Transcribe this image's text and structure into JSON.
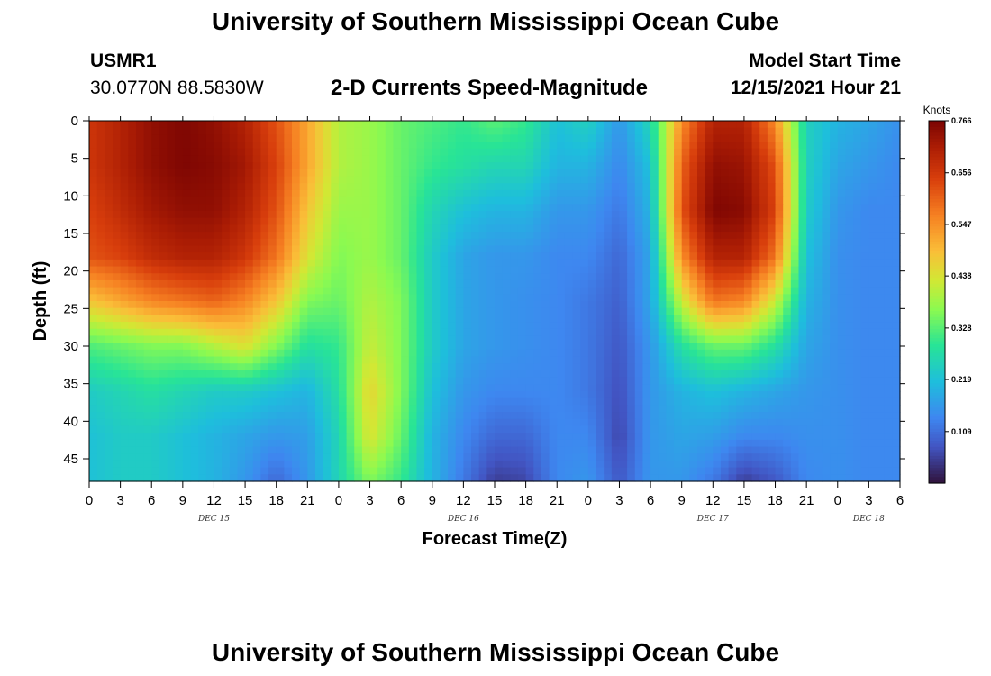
{
  "page": {
    "title": "University of Southern Mississippi Ocean Cube",
    "station_id": "USMR1",
    "station_coords": "30.0770N  88.5830W",
    "chart_title": "2-D Currents Speed-Magnitude",
    "model_start_label": "Model Start Time",
    "model_start_value": "12/15/2021 Hour 21",
    "footer_title": "University of Southern Mississippi Ocean Cube"
  },
  "chart_data": {
    "type": "heatmap",
    "title": "2-D Currents Speed-Magnitude",
    "xlabel": "Forecast Time(Z)",
    "ylabel": "Depth (ft)",
    "x_ticks": [
      "0",
      "3",
      "6",
      "9",
      "12",
      "15",
      "18",
      "21",
      "0",
      "3",
      "6",
      "9",
      "12",
      "15",
      "18",
      "21",
      "0",
      "3",
      "6",
      "9",
      "12",
      "15",
      "18",
      "21",
      "0",
      "3",
      "6"
    ],
    "x_range_hours": [
      0,
      78
    ],
    "date_labels": [
      {
        "label": "DEC 15",
        "hour": 12
      },
      {
        "label": "DEC 16",
        "hour": 36
      },
      {
        "label": "DEC 17",
        "hour": 60
      },
      {
        "label": "DEC 18",
        "hour": 75
      }
    ],
    "y_ticks": [
      "0",
      "5",
      "10",
      "15",
      "20",
      "25",
      "30",
      "35",
      "40",
      "45"
    ],
    "y_range_ft": [
      0,
      48
    ],
    "y_inverted": true,
    "colorbar": {
      "unit": "Knots",
      "min": 0.0,
      "max": 0.766,
      "tick_labels": [
        "0.766",
        "0.656",
        "0.547",
        "0.438",
        "0.328",
        "0.219",
        "0.109"
      ],
      "colormap": "turbo"
    },
    "grid": false,
    "times_hours": [
      0,
      3,
      6,
      9,
      12,
      15,
      18,
      21,
      24,
      27,
      30,
      33,
      36,
      39,
      42,
      45,
      48,
      51,
      54,
      57,
      60,
      63,
      66,
      69,
      72,
      75,
      78
    ],
    "depths_ft": [
      0,
      6,
      12,
      18,
      24,
      30,
      36,
      42,
      48
    ],
    "values_knots": [
      [
        0.66,
        0.7,
        0.74,
        0.76,
        0.74,
        0.7,
        0.62,
        0.52,
        0.4,
        0.38,
        0.34,
        0.32,
        0.3,
        0.33,
        0.3,
        0.22,
        0.25,
        0.16,
        0.26,
        0.55,
        0.7,
        0.7,
        0.55,
        0.25,
        0.2,
        0.18,
        0.15
      ],
      [
        0.66,
        0.7,
        0.74,
        0.76,
        0.75,
        0.72,
        0.64,
        0.52,
        0.4,
        0.38,
        0.34,
        0.3,
        0.28,
        0.26,
        0.26,
        0.2,
        0.2,
        0.14,
        0.22,
        0.6,
        0.74,
        0.73,
        0.62,
        0.25,
        0.18,
        0.16,
        0.14
      ],
      [
        0.64,
        0.68,
        0.72,
        0.74,
        0.74,
        0.7,
        0.62,
        0.48,
        0.38,
        0.38,
        0.34,
        0.26,
        0.22,
        0.2,
        0.2,
        0.16,
        0.16,
        0.12,
        0.2,
        0.62,
        0.76,
        0.75,
        0.64,
        0.24,
        0.16,
        0.14,
        0.14
      ],
      [
        0.62,
        0.64,
        0.68,
        0.7,
        0.7,
        0.66,
        0.58,
        0.44,
        0.36,
        0.38,
        0.34,
        0.24,
        0.18,
        0.16,
        0.16,
        0.14,
        0.14,
        0.1,
        0.18,
        0.55,
        0.7,
        0.7,
        0.58,
        0.22,
        0.15,
        0.14,
        0.14
      ],
      [
        0.48,
        0.52,
        0.56,
        0.58,
        0.6,
        0.56,
        0.48,
        0.36,
        0.34,
        0.4,
        0.36,
        0.24,
        0.18,
        0.16,
        0.15,
        0.14,
        0.12,
        0.09,
        0.18,
        0.42,
        0.58,
        0.56,
        0.42,
        0.2,
        0.15,
        0.14,
        0.14
      ],
      [
        0.32,
        0.34,
        0.36,
        0.36,
        0.4,
        0.44,
        0.36,
        0.28,
        0.3,
        0.42,
        0.36,
        0.24,
        0.18,
        0.16,
        0.15,
        0.14,
        0.12,
        0.08,
        0.16,
        0.28,
        0.34,
        0.34,
        0.28,
        0.18,
        0.15,
        0.14,
        0.14
      ],
      [
        0.24,
        0.26,
        0.28,
        0.26,
        0.24,
        0.24,
        0.22,
        0.2,
        0.28,
        0.46,
        0.36,
        0.22,
        0.16,
        0.14,
        0.14,
        0.14,
        0.12,
        0.07,
        0.16,
        0.2,
        0.22,
        0.2,
        0.18,
        0.16,
        0.15,
        0.14,
        0.14
      ],
      [
        0.22,
        0.24,
        0.24,
        0.22,
        0.2,
        0.18,
        0.16,
        0.17,
        0.26,
        0.44,
        0.34,
        0.2,
        0.14,
        0.1,
        0.1,
        0.14,
        0.14,
        0.06,
        0.16,
        0.18,
        0.17,
        0.14,
        0.14,
        0.15,
        0.15,
        0.14,
        0.14
      ],
      [
        0.22,
        0.24,
        0.24,
        0.22,
        0.2,
        0.16,
        0.1,
        0.16,
        0.26,
        0.36,
        0.3,
        0.2,
        0.12,
        0.05,
        0.06,
        0.14,
        0.16,
        0.08,
        0.16,
        0.16,
        0.12,
        0.05,
        0.08,
        0.14,
        0.15,
        0.14,
        0.14
      ]
    ]
  }
}
